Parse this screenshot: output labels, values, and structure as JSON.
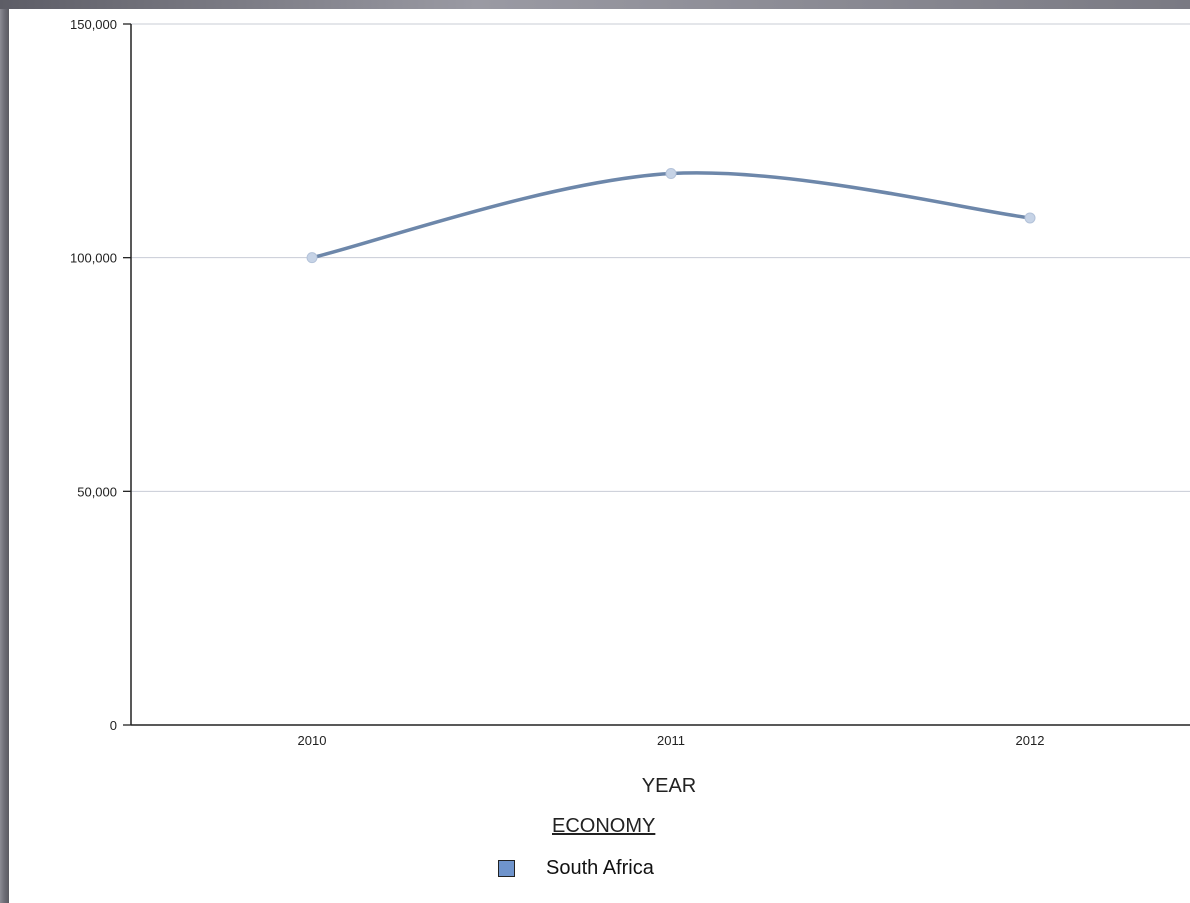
{
  "chart_data": {
    "type": "line",
    "x": [
      "2010",
      "2011",
      "2012"
    ],
    "categories": [
      "2010",
      "2011",
      "2012"
    ],
    "series": [
      {
        "name": "South Africa",
        "values": [
          100000,
          118000,
          108500
        ]
      }
    ],
    "xlabel": "YEAR",
    "ylabel": "",
    "ylim": [
      0,
      150000
    ],
    "yticks": [
      0,
      50000,
      100000,
      150000
    ],
    "ytick_labels": [
      "0",
      "50,000",
      "100,000",
      "150,000"
    ],
    "grid": true,
    "legend": {
      "title": "ECONOMY",
      "placement": "bottom-center"
    },
    "colors": {
      "line": "#6d87aa",
      "marker": "#c6d3e6",
      "swatch": "#6f94cc",
      "grid": "#c8ccd6"
    }
  }
}
